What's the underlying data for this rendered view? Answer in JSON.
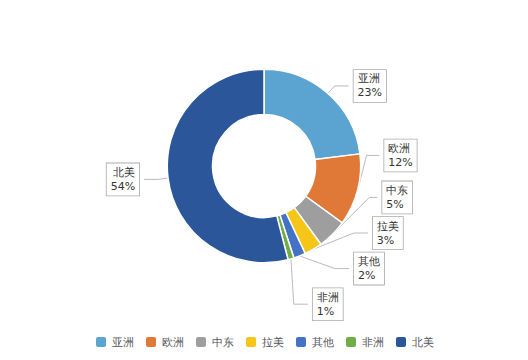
{
  "chart_data": {
    "type": "pie",
    "categories": [
      "亚洲",
      "欧洲",
      "中东",
      "拉美",
      "其他",
      "非洲",
      "北美"
    ],
    "values": [
      23,
      12,
      5,
      3,
      2,
      1,
      54
    ],
    "value_labels": [
      "23%",
      "12%",
      "5%",
      "3%",
      "2%",
      "1%",
      "54%"
    ],
    "colors": [
      "#5BA3D0",
      "#E07838",
      "#9E9E9E",
      "#F5C518",
      "#4472C4",
      "#70AD47",
      "#2B579A"
    ],
    "data_labels": true,
    "legend": "bottom"
  }
}
